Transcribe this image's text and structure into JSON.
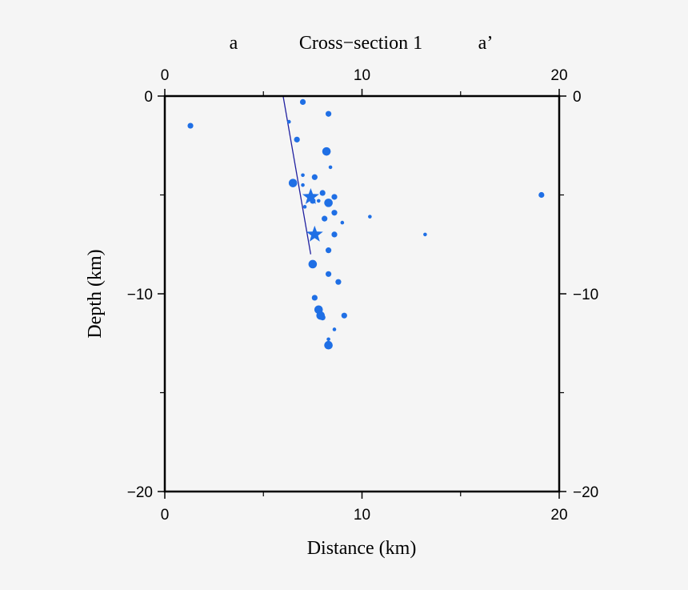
{
  "chart_data": {
    "type": "scatter",
    "title": "Cross−section 1",
    "section_start_label": "a",
    "section_end_label": "a’",
    "xlabel": "Distance (km)",
    "ylabel": "Depth (km)",
    "xlim": [
      0,
      20
    ],
    "ylim": [
      -20,
      0
    ],
    "x_ticks": [
      0,
      10,
      20
    ],
    "x_tick_labels": [
      "0",
      "10",
      "20"
    ],
    "y_ticks": [
      0,
      -10,
      -20
    ],
    "y_tick_labels": [
      "0",
      "−10",
      "−20"
    ],
    "x_minor_ticks": [
      5,
      15
    ],
    "y_minor_ticks": [
      -5,
      -15
    ],
    "grid": false,
    "colors": {
      "events": "#1f6fe5",
      "fault": "#2020a0",
      "frame": "#000000"
    },
    "events": [
      {
        "x": 1.3,
        "y": -1.5,
        "size": 1
      },
      {
        "x": 7.0,
        "y": -0.3,
        "size": 1
      },
      {
        "x": 8.3,
        "y": -0.9,
        "size": 1
      },
      {
        "x": 6.3,
        "y": -1.3,
        "size": 0
      },
      {
        "x": 6.7,
        "y": -2.2,
        "size": 1
      },
      {
        "x": 8.2,
        "y": -2.8,
        "size": 2
      },
      {
        "x": 8.4,
        "y": -3.6,
        "size": 0
      },
      {
        "x": 7.0,
        "y": -4.0,
        "size": 0
      },
      {
        "x": 7.6,
        "y": -4.1,
        "size": 1
      },
      {
        "x": 6.5,
        "y": -4.4,
        "size": 2
      },
      {
        "x": 7.0,
        "y": -4.5,
        "size": 0
      },
      {
        "x": 8.0,
        "y": -4.9,
        "size": 1
      },
      {
        "x": 8.6,
        "y": -5.1,
        "size": 1
      },
      {
        "x": 7.5,
        "y": -5.3,
        "size": 1
      },
      {
        "x": 7.8,
        "y": -5.3,
        "size": 0
      },
      {
        "x": 8.3,
        "y": -5.4,
        "size": 2
      },
      {
        "x": 7.1,
        "y": -5.6,
        "size": 0
      },
      {
        "x": 8.6,
        "y": -5.9,
        "size": 1
      },
      {
        "x": 8.1,
        "y": -6.2,
        "size": 1
      },
      {
        "x": 9.0,
        "y": -6.4,
        "size": 0
      },
      {
        "x": 10.4,
        "y": -6.1,
        "size": 0
      },
      {
        "x": 8.6,
        "y": -7.0,
        "size": 1
      },
      {
        "x": 13.2,
        "y": -7.0,
        "size": 0
      },
      {
        "x": 19.1,
        "y": -5.0,
        "size": 1
      },
      {
        "x": 8.3,
        "y": -7.8,
        "size": 1
      },
      {
        "x": 7.5,
        "y": -8.5,
        "size": 2
      },
      {
        "x": 8.3,
        "y": -9.0,
        "size": 1
      },
      {
        "x": 8.8,
        "y": -9.4,
        "size": 1
      },
      {
        "x": 7.6,
        "y": -10.2,
        "size": 1
      },
      {
        "x": 7.8,
        "y": -10.8,
        "size": 2
      },
      {
        "x": 7.9,
        "y": -11.1,
        "size": 2
      },
      {
        "x": 8.0,
        "y": -11.2,
        "size": 1
      },
      {
        "x": 9.1,
        "y": -11.1,
        "size": 1
      },
      {
        "x": 8.6,
        "y": -11.8,
        "size": 0
      },
      {
        "x": 8.3,
        "y": -12.3,
        "size": 0
      },
      {
        "x": 8.3,
        "y": -12.6,
        "size": 2
      }
    ],
    "mainshocks": [
      {
        "x": 7.4,
        "y": -5.1
      },
      {
        "x": 7.6,
        "y": -7.0
      }
    ],
    "fault_trace": {
      "x": [
        6.0,
        7.4
      ],
      "y": [
        0.0,
        -8.0
      ]
    }
  }
}
